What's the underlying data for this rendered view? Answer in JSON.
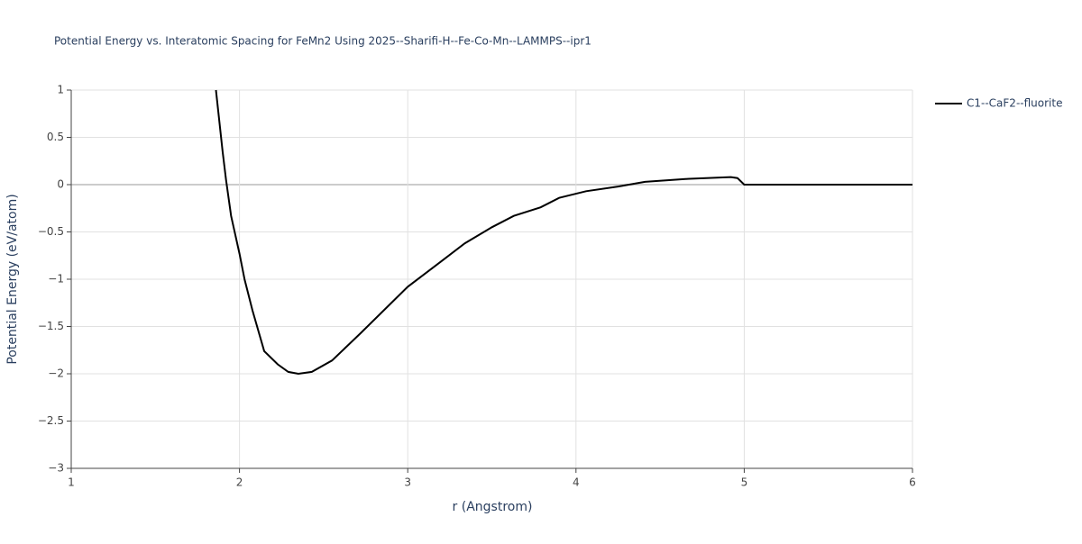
{
  "chart_data": {
    "type": "line",
    "title": "Potential Energy vs. Interatomic Spacing for FeMn2 Using 2025--Sharifi-H--Fe-Co-Mn--LAMMPS--ipr1",
    "x_label": "r (Angstrom)",
    "y_label": "Potential Energy (eV/atom)",
    "xlim": [
      1,
      6
    ],
    "ylim": [
      -3,
      1
    ],
    "xticks": [
      1,
      2,
      3,
      4,
      5,
      6
    ],
    "yticks": [
      {
        "value": -3,
        "label": "−3"
      },
      {
        "value": -2.5,
        "label": "−2.5"
      },
      {
        "value": -2,
        "label": "−2"
      },
      {
        "value": -1.5,
        "label": "−1.5"
      },
      {
        "value": -1,
        "label": "−1"
      },
      {
        "value": -0.5,
        "label": "−0.5"
      },
      0,
      0.5,
      1
    ],
    "grid": true,
    "series": [
      {
        "name": "C1--CaF2--fluorite",
        "color": "#000000",
        "x": [
          1.86,
          1.9,
          1.92,
          1.95,
          2.0,
          2.03,
          2.077,
          2.147,
          2.227,
          2.29,
          2.35,
          2.43,
          2.55,
          2.72,
          3.0,
          3.2,
          3.34,
          3.5,
          3.63,
          3.79,
          3.9,
          4.06,
          4.25,
          4.41,
          4.65,
          4.92,
          4.96,
          5.0,
          6.0
        ],
        "values": [
          1.0,
          0.35,
          0.05,
          -0.33,
          -0.73,
          -1.0,
          -1.33,
          -1.76,
          -1.9,
          -1.98,
          -2.0,
          -1.98,
          -1.86,
          -1.57,
          -1.08,
          -0.81,
          -0.62,
          -0.45,
          -0.33,
          -0.24,
          -0.14,
          -0.07,
          -0.02,
          0.03,
          0.06,
          0.08,
          0.07,
          0,
          0
        ]
      }
    ]
  }
}
